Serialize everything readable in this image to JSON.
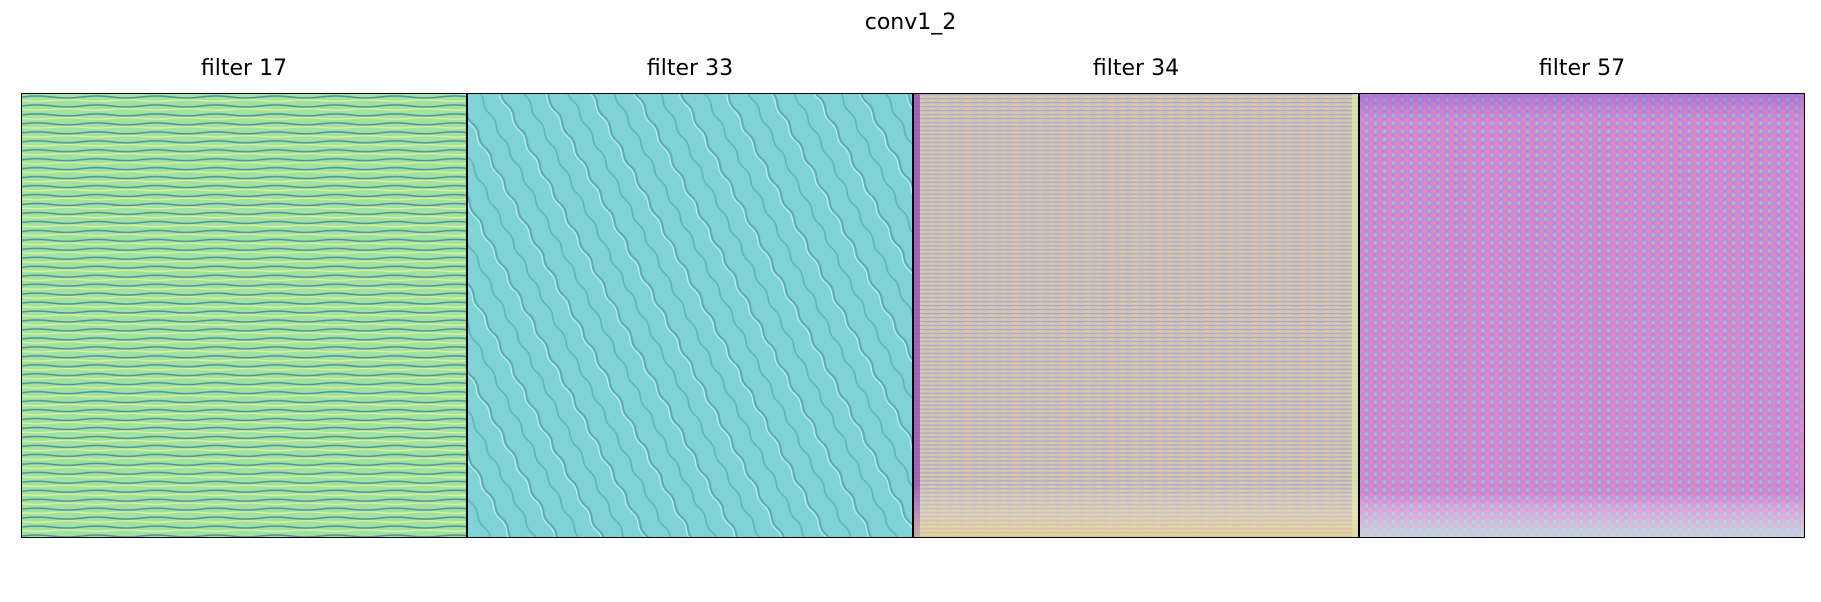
{
  "figure": {
    "title": "conv1_2"
  },
  "panels": [
    {
      "title": "filter 17",
      "base_color": "#9fe39f",
      "pattern_color": "#4f8fa0",
      "accent_color": "#f4f0a0",
      "pattern": "horizontal-waves"
    },
    {
      "title": "filter 33",
      "base_color": "#7fd3d6",
      "pattern_color": "#5fa8b4",
      "accent_color": "#d6fbff",
      "pattern": "diagonal-ripples"
    },
    {
      "title": "filter 34",
      "base_color": "#c7c9b0",
      "pattern_color": "#b890d8",
      "accent_color": "#f0d48c",
      "pattern": "horizontal-striations"
    },
    {
      "title": "filter 57",
      "base_color": "#c98ad8",
      "pattern_color": "#f08aa8",
      "accent_color": "#8fd3c8",
      "pattern": "noise-texture"
    }
  ]
}
